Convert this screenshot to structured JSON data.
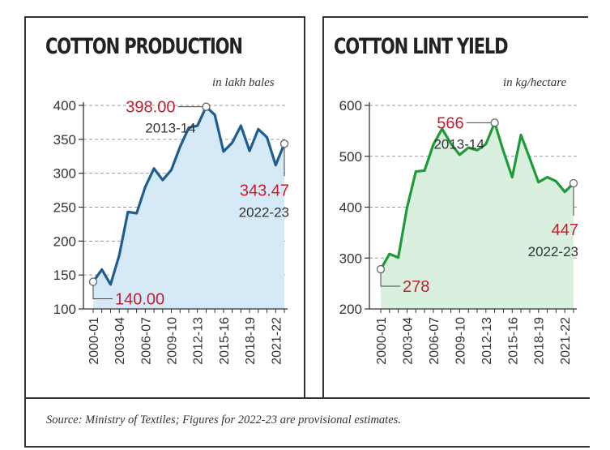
{
  "colors": {
    "production_line": "#1f5c8f",
    "production_fill": "#d6e9f7",
    "yield_line": "#1e9a3a",
    "yield_fill": "#d9f0de",
    "highlight_red": "#c41e2e",
    "text": "#333333"
  },
  "source_note": "Source: Ministry of Textiles; Figures for 2022-23 are provisional estimates.",
  "chart_data": [
    {
      "type": "area",
      "title": "COTTON PRODUCTION",
      "unit_label": "in lakh bales",
      "ylim": [
        100,
        400
      ],
      "yticks": [
        "100",
        "150",
        "200",
        "250",
        "300",
        "350",
        "400"
      ],
      "ytick_values": [
        100,
        150,
        200,
        250,
        300,
        350,
        400
      ],
      "xtick_labels": [
        "2000-01",
        "2003-04",
        "2006-07",
        "2009-10",
        "2012-13",
        "2015-16",
        "2018-19",
        "2021-22"
      ],
      "xtick_indices": [
        0,
        3,
        6,
        9,
        12,
        15,
        18,
        21
      ],
      "x": [
        "2000-01",
        "2001-02",
        "2002-03",
        "2003-04",
        "2004-05",
        "2005-06",
        "2006-07",
        "2007-08",
        "2008-09",
        "2009-10",
        "2010-11",
        "2011-12",
        "2012-13",
        "2013-14",
        "2014-15",
        "2015-16",
        "2016-17",
        "2017-18",
        "2018-19",
        "2019-20",
        "2020-21",
        "2021-22",
        "2022-23"
      ],
      "values": [
        140,
        158,
        136,
        179,
        243,
        241,
        280,
        307,
        290,
        305,
        339,
        367,
        370,
        398,
        386,
        332,
        345,
        370,
        333,
        365,
        353,
        312,
        343.47
      ],
      "annotations": [
        {
          "index": 0,
          "value_label": "140.00",
          "year_label": ""
        },
        {
          "index": 13,
          "value_label": "398.00",
          "year_label": "2013-14"
        },
        {
          "index": 22,
          "value_label": "343.47",
          "year_label": "2022-23"
        }
      ],
      "grid": "dashed horizontal"
    },
    {
      "type": "area",
      "title": "COTTON LINT YIELD",
      "unit_label": "in kg/hectare",
      "ylim": [
        200,
        600
      ],
      "yticks": [
        "200",
        "300",
        "400",
        "500",
        "600"
      ],
      "ytick_values": [
        200,
        300,
        400,
        500,
        600
      ],
      "xtick_labels": [
        "2000-01",
        "2003-04",
        "2006-07",
        "2009-10",
        "2012-13",
        "2015-16",
        "2018-19",
        "2021-22"
      ],
      "xtick_indices": [
        0,
        3,
        6,
        9,
        12,
        15,
        18,
        21
      ],
      "x": [
        "2000-01",
        "2001-02",
        "2002-03",
        "2003-04",
        "2004-05",
        "2005-06",
        "2006-07",
        "2007-08",
        "2008-09",
        "2009-10",
        "2010-11",
        "2011-12",
        "2012-13",
        "2013-14",
        "2014-15",
        "2015-16",
        "2016-17",
        "2017-18",
        "2018-19",
        "2019-20",
        "2020-21",
        "2021-22",
        "2022-23"
      ],
      "values": [
        278,
        308,
        301,
        399,
        470,
        472,
        523,
        554,
        525,
        503,
        517,
        512,
        524,
        566,
        510,
        459,
        542,
        496,
        449,
        459,
        451,
        430,
        447
      ],
      "annotations": [
        {
          "index": 0,
          "value_label": "278",
          "year_label": ""
        },
        {
          "index": 13,
          "value_label": "566",
          "year_label": "2013-14"
        },
        {
          "index": 22,
          "value_label": "447",
          "year_label": "2022-23"
        }
      ],
      "grid": "dashed horizontal"
    }
  ]
}
